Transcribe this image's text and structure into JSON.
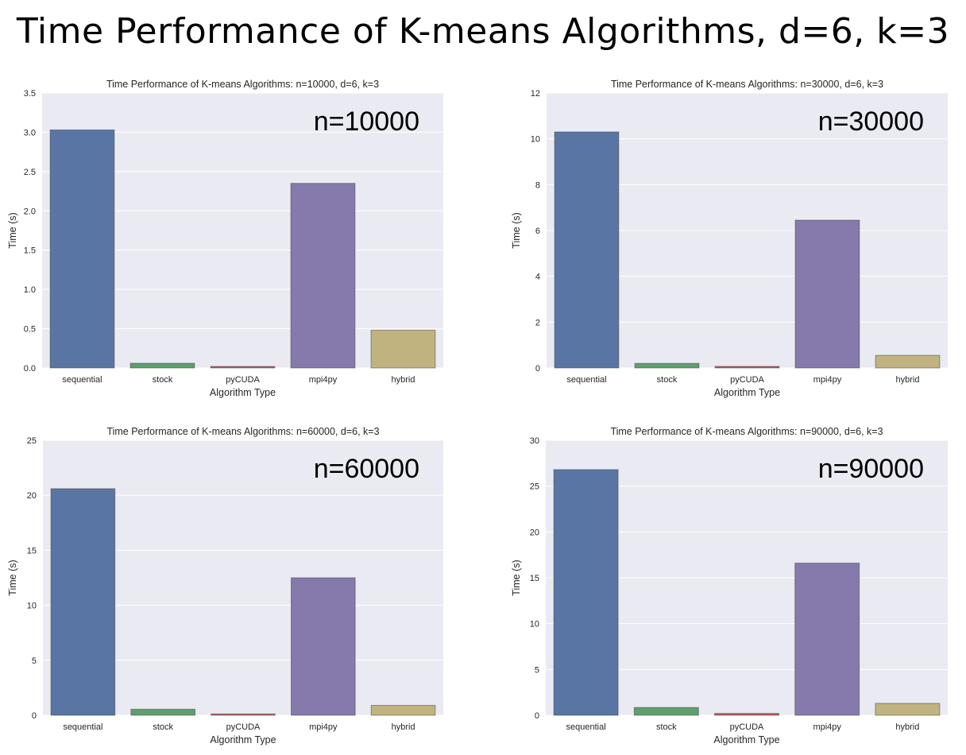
{
  "slide_title": "Time Performance of K-means Algorithms, d=6, k=3",
  "colors": {
    "plot_bg": "#eaeaf2",
    "grid": "#ffffff",
    "bars": [
      "#5975a4",
      "#5f9e6e",
      "#b55d60",
      "#857aab",
      "#c1b37f"
    ]
  },
  "chart_data": [
    {
      "type": "bar",
      "title": "Time Performance of K-means Algorithms: n=10000, d=6, k=3",
      "annotation": "n=10000",
      "xlabel": "Algorithm Type",
      "ylabel": "Time (s)",
      "categories": [
        "sequential",
        "stock",
        "pyCUDA",
        "mpi4py",
        "hybrid"
      ],
      "values": [
        3.03,
        0.06,
        0.02,
        2.35,
        0.48
      ],
      "ylim": [
        0,
        3.5
      ],
      "yticks": [
        "0.0",
        "0.5",
        "1.0",
        "1.5",
        "2.0",
        "2.5",
        "3.0",
        "3.5"
      ],
      "grid": true
    },
    {
      "type": "bar",
      "title": "Time Performance of K-means Algorithms: n=30000, d=6, k=3",
      "annotation": "n=30000",
      "xlabel": "Algorithm Type",
      "ylabel": "Time (s)",
      "categories": [
        "sequential",
        "stock",
        "pyCUDA",
        "mpi4py",
        "hybrid"
      ],
      "values": [
        10.3,
        0.2,
        0.07,
        6.45,
        0.55
      ],
      "ylim": [
        0,
        12
      ],
      "yticks": [
        "0",
        "2",
        "4",
        "6",
        "8",
        "10",
        "12"
      ],
      "grid": true
    },
    {
      "type": "bar",
      "title": "Time Performance of K-means Algorithms: n=60000, d=6, k=3",
      "annotation": "n=60000",
      "xlabel": "Algorithm Type",
      "ylabel": "Time (s)",
      "categories": [
        "sequential",
        "stock",
        "pyCUDA",
        "mpi4py",
        "hybrid"
      ],
      "values": [
        20.6,
        0.55,
        0.12,
        12.5,
        0.9
      ],
      "ylim": [
        0,
        25
      ],
      "yticks": [
        "0",
        "5",
        "10",
        "15",
        "20",
        "25"
      ],
      "grid": true
    },
    {
      "type": "bar",
      "title": "Time Performance of K-means Algorithms: n=90000, d=6, k=3",
      "annotation": "n=90000",
      "xlabel": "Algorithm Type",
      "ylabel": "Time (s)",
      "categories": [
        "sequential",
        "stock",
        "pyCUDA",
        "mpi4py",
        "hybrid"
      ],
      "values": [
        26.8,
        0.85,
        0.2,
        16.6,
        1.3
      ],
      "ylim": [
        0,
        30
      ],
      "yticks": [
        "0",
        "5",
        "10",
        "15",
        "20",
        "25",
        "30"
      ],
      "grid": true
    }
  ]
}
